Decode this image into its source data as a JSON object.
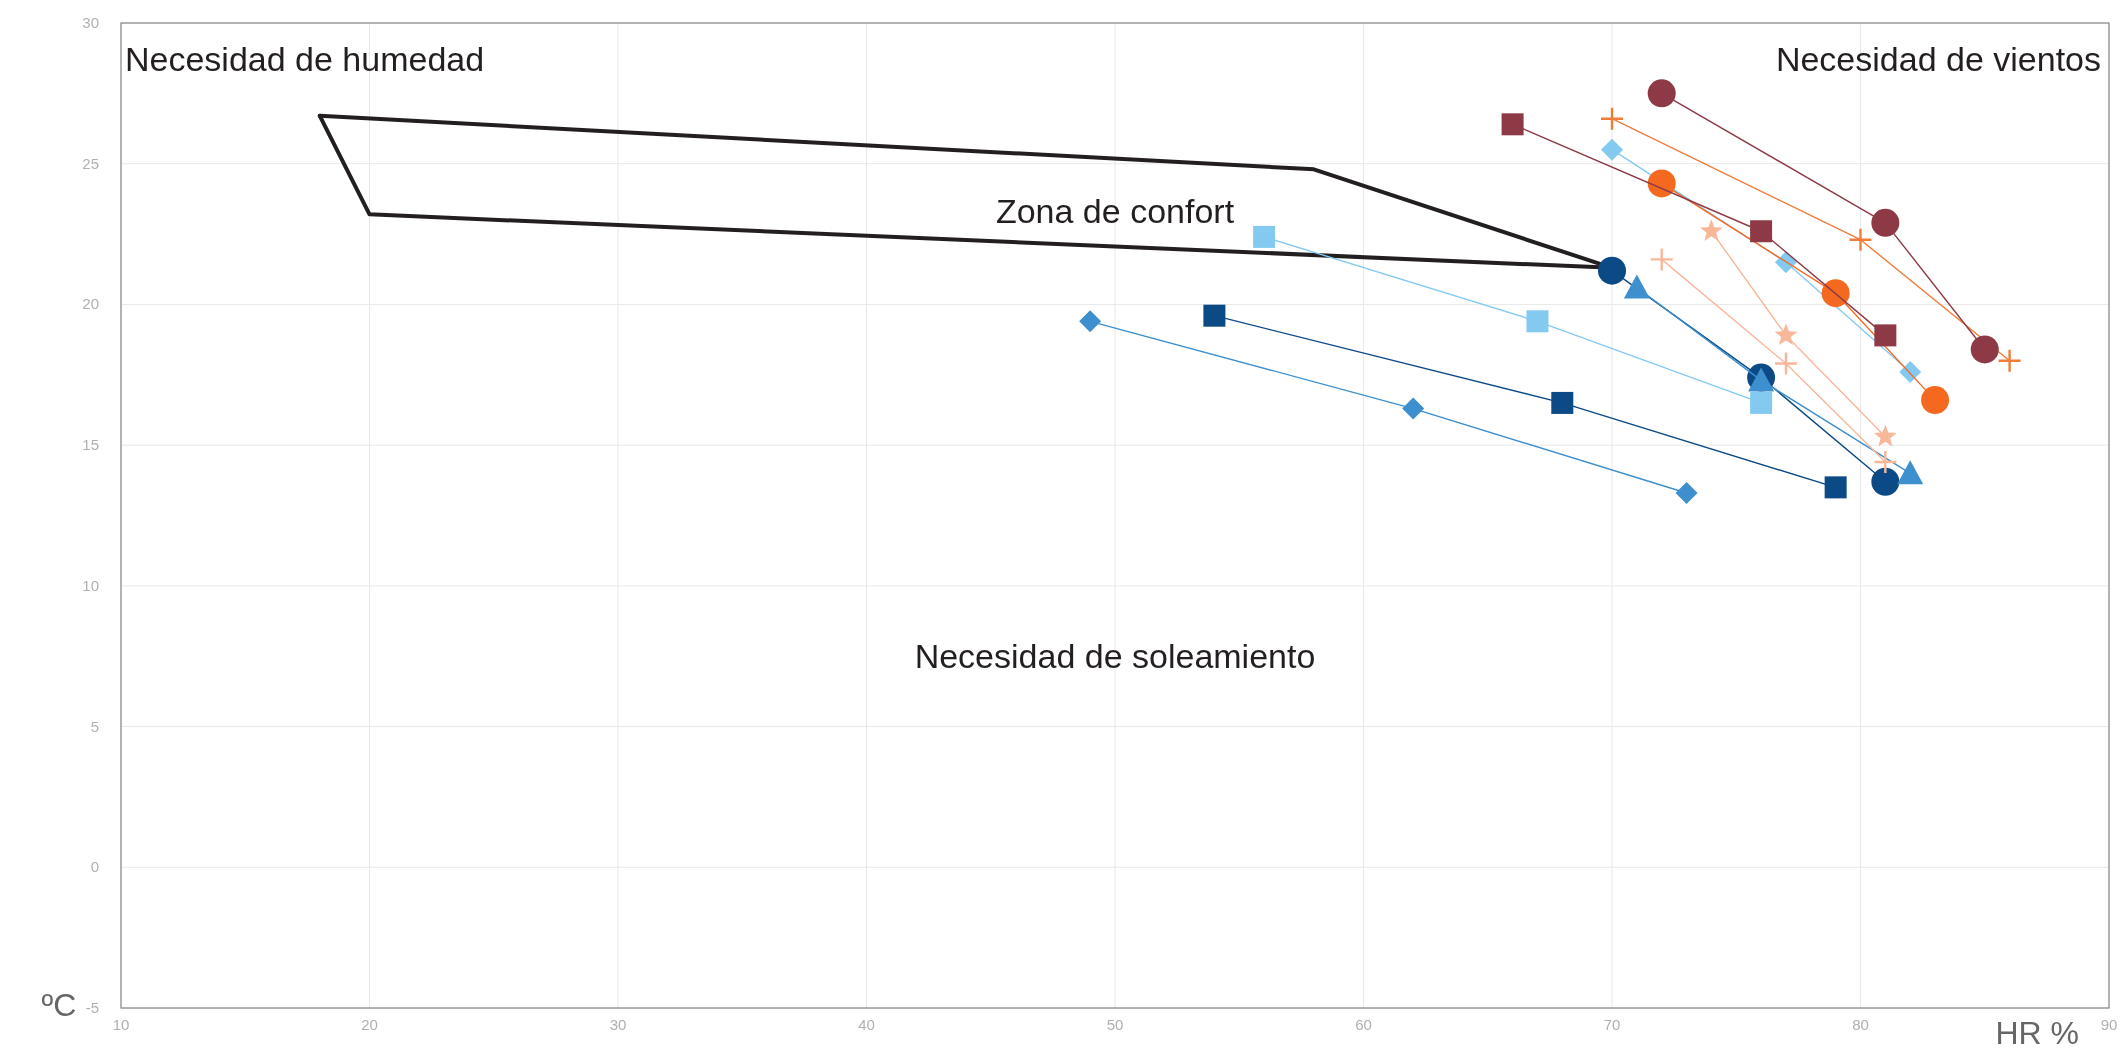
{
  "chart_data": {
    "type": "line",
    "xlabel": "HR %",
    "ylabel": "ºC",
    "xlim": [
      10,
      90
    ],
    "xticks": [
      10,
      20,
      30,
      40,
      50,
      60,
      70,
      80,
      90
    ],
    "ylim": [
      -5,
      30
    ],
    "yticks": [
      -5,
      0,
      5,
      10,
      15,
      20,
      25,
      30
    ],
    "grid": true,
    "annotations": [
      "Necesidad de humedad",
      "Necesidad de vientos",
      "Zona de confort",
      "Necesidad de soleamiento"
    ],
    "series": [
      {
        "color": "#231f20",
        "marker": "none",
        "x": [
          18,
          58,
          70
        ],
        "values": [
          26.7,
          24.8,
          21.3
        ]
      },
      {
        "color": "#231f20",
        "marker": "none",
        "x": [
          18,
          20,
          70
        ],
        "values": [
          26.7,
          23.2,
          21.3
        ]
      },
      {
        "color": "#0b4a85",
        "marker": "circle",
        "x": [
          70,
          76,
          81
        ],
        "values": [
          21.2,
          17.4,
          13.7
        ]
      },
      {
        "color": "#3d8fce",
        "marker": "triangle",
        "x": [
          71,
          76,
          82
        ],
        "values": [
          20.6,
          17.3,
          14.0
        ]
      },
      {
        "color": "#84caf0",
        "marker": "square",
        "x": [
          56,
          67,
          76
        ],
        "values": [
          22.4,
          19.4,
          16.5
        ]
      },
      {
        "color": "#0b4a85",
        "marker": "square",
        "x": [
          54,
          68,
          79
        ],
        "values": [
          19.6,
          16.5,
          13.5
        ]
      },
      {
        "color": "#3d8fce",
        "marker": "diamond",
        "x": [
          49,
          62,
          73
        ],
        "values": [
          19.4,
          16.3,
          13.3
        ]
      },
      {
        "color": "#84caf0",
        "marker": "diamond",
        "x": [
          70,
          77,
          82
        ],
        "values": [
          25.5,
          21.5,
          17.6
        ]
      },
      {
        "color": "#f4691f",
        "marker": "circle",
        "x": [
          72,
          79,
          83
        ],
        "values": [
          24.3,
          20.4,
          16.6
        ]
      },
      {
        "color": "#f07c3a",
        "marker": "cross",
        "x": [
          70,
          80,
          86
        ],
        "values": [
          26.6,
          22.3,
          18.0
        ]
      },
      {
        "color": "#8e3a46",
        "marker": "circle",
        "x": [
          72,
          81,
          85
        ],
        "values": [
          27.5,
          22.9,
          18.4
        ]
      },
      {
        "color": "#8e3a46",
        "marker": "square",
        "x": [
          66,
          76,
          81
        ],
        "values": [
          26.4,
          22.6,
          18.9
        ]
      },
      {
        "color": "#f9b79a",
        "marker": "cross",
        "x": [
          72,
          77,
          81
        ],
        "values": [
          21.6,
          17.9,
          14.4
        ]
      },
      {
        "color": "#f9b79a",
        "marker": "star",
        "x": [
          74,
          77,
          81
        ],
        "values": [
          22.6,
          18.9,
          15.3
        ]
      }
    ]
  }
}
